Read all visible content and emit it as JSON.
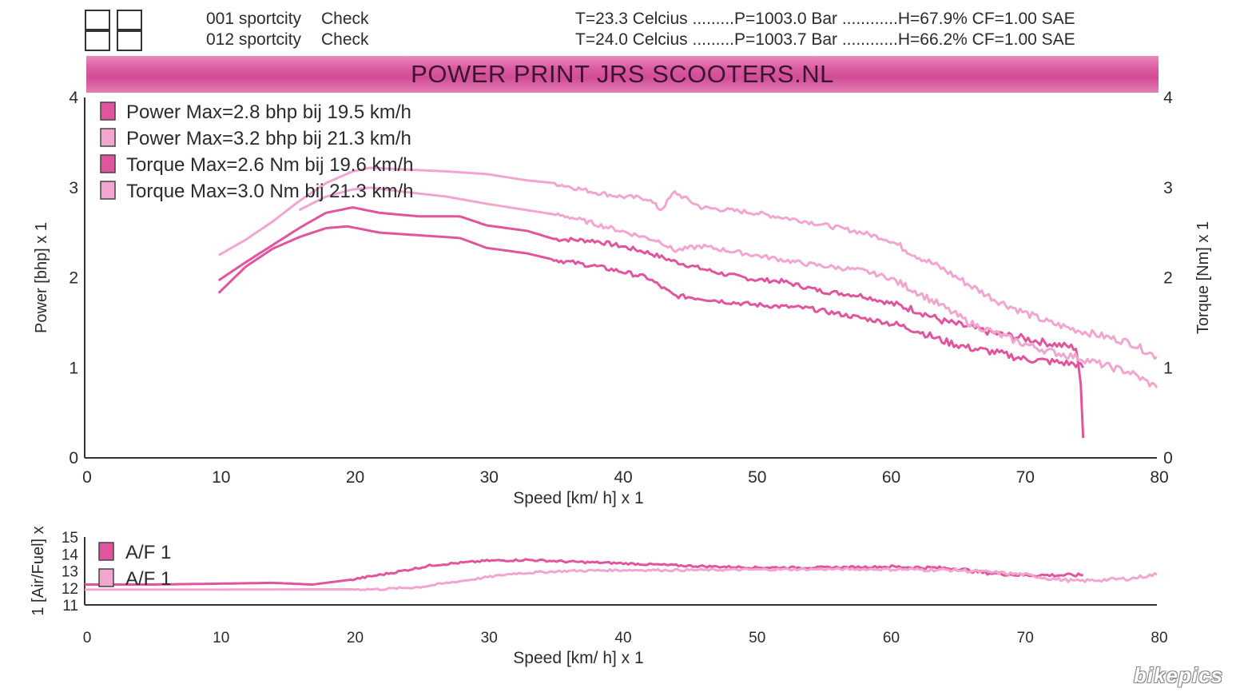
{
  "header": {
    "runs": [
      {
        "name": "001 sportcity",
        "status": "Check",
        "conditions": "T=23.3 Celcius .........P=1003.0 Bar ............H=67.9% CF=1.00 SAE"
      },
      {
        "name": "012 sportcity",
        "status": "Check",
        "conditions": "T=24.0 Celcius .........P=1003.7 Bar ............H=66.2% CF=1.00 SAE"
      }
    ],
    "banner": "POWER PRINT JRS SCOOTERS.NL"
  },
  "colors": {
    "run1": "#e0559d",
    "run2": "#f1a6cf",
    "axis": "#333333",
    "banner": "#d24d97"
  },
  "chart_data": [
    {
      "type": "line",
      "xlabel": "Speed [km/ h] x 1",
      "ylabel": "Power [bhp] x 1",
      "y2label": "Torque [Nm] x 1",
      "xlim": [
        0,
        80
      ],
      "ylim": [
        0,
        4
      ],
      "y2lim": [
        0,
        4
      ],
      "xticks": [
        "0",
        "10",
        "20",
        "30",
        "40",
        "50",
        "60",
        "70",
        "80"
      ],
      "yticks": [
        "0",
        "1",
        "2",
        "3",
        "4"
      ],
      "y2ticks": [
        "0",
        "1",
        "2",
        "3",
        "4"
      ],
      "legend_position": "top-left",
      "legend": [
        "Power  Max=2.8 bhp bij 19.5 km/h",
        "Power  Max=3.2 bhp bij 21.3 km/h",
        "Torque  Max=2.6 Nm bij 19.6 km/h",
        "Torque  Max=3.0 Nm bij 21.3 km/h"
      ],
      "series": [
        {
          "color": "#e0559d",
          "x": [
            10,
            12,
            14,
            16,
            18,
            20,
            22,
            25,
            28,
            30,
            33,
            35,
            38,
            40,
            42,
            44,
            46,
            48,
            50,
            52,
            55,
            58,
            60,
            62,
            64,
            66,
            68,
            70,
            72,
            74,
            74.3,
            74.5
          ],
          "y": [
            1.97,
            2.17,
            2.36,
            2.55,
            2.72,
            2.78,
            2.72,
            2.68,
            2.68,
            2.58,
            2.52,
            2.43,
            2.41,
            2.35,
            2.28,
            2.18,
            2.1,
            2.03,
            1.98,
            1.96,
            1.85,
            1.8,
            1.72,
            1.64,
            1.52,
            1.45,
            1.38,
            1.33,
            1.27,
            1.22,
            0.85,
            0.22
          ]
        },
        {
          "color": "#f1a6cf",
          "x": [
            10,
            12,
            14,
            16,
            18,
            20,
            21.3,
            24,
            27,
            30,
            33,
            35,
            38,
            40,
            42,
            43,
            44,
            46,
            50,
            54,
            58,
            60,
            62,
            64,
            66,
            68,
            70,
            72,
            74,
            76,
            78,
            80
          ],
          "y": [
            2.25,
            2.42,
            2.62,
            2.85,
            3.05,
            3.18,
            3.22,
            3.2,
            3.18,
            3.15,
            3.08,
            3.05,
            2.95,
            2.9,
            2.88,
            2.75,
            2.95,
            2.78,
            2.72,
            2.62,
            2.5,
            2.42,
            2.25,
            2.1,
            1.92,
            1.75,
            1.62,
            1.5,
            1.42,
            1.35,
            1.28,
            1.12
          ]
        },
        {
          "color": "#e0559d",
          "x": [
            10,
            12,
            14,
            16,
            18,
            19.6,
            22,
            25,
            28,
            30,
            33,
            35,
            38,
            40,
            42,
            44,
            46,
            48,
            50,
            54,
            58,
            60,
            62,
            64,
            66,
            68,
            70,
            72,
            74,
            74.5
          ],
          "y": [
            1.83,
            2.12,
            2.32,
            2.45,
            2.55,
            2.57,
            2.5,
            2.47,
            2.44,
            2.33,
            2.27,
            2.2,
            2.13,
            2.07,
            2.0,
            1.8,
            1.77,
            1.73,
            1.7,
            1.66,
            1.55,
            1.5,
            1.42,
            1.3,
            1.22,
            1.17,
            1.1,
            1.07,
            1.04,
            1.0
          ]
        },
        {
          "color": "#f1a6cf",
          "x": [
            16,
            18,
            20,
            21.3,
            24,
            27,
            30,
            33,
            36,
            40,
            43,
            44,
            46,
            50,
            54,
            58,
            60,
            62,
            64,
            66,
            68,
            70,
            72,
            74,
            76,
            78,
            80
          ],
          "y": [
            2.75,
            2.9,
            2.98,
            3.0,
            2.95,
            2.9,
            2.82,
            2.75,
            2.68,
            2.52,
            2.4,
            2.3,
            2.35,
            2.25,
            2.15,
            2.08,
            2.0,
            1.85,
            1.68,
            1.5,
            1.38,
            1.27,
            1.18,
            1.12,
            1.03,
            0.95,
            0.78
          ]
        }
      ]
    },
    {
      "type": "line",
      "xlabel": "Speed [km/ h] x 1",
      "ylabel": "1 [Air/Fuel] x",
      "xlim": [
        0,
        80
      ],
      "ylim": [
        11,
        15
      ],
      "xticks": [
        "0",
        "10",
        "20",
        "30",
        "40",
        "50",
        "60",
        "70",
        "80"
      ],
      "yticks": [
        "11",
        "12",
        "13",
        "14",
        "15"
      ],
      "legend_position": "top-left",
      "legend": [
        "A/F 1",
        "A/F 1"
      ],
      "series": [
        {
          "color": "#e0559d",
          "x": [
            0,
            5,
            10,
            14,
            17,
            20,
            23,
            26,
            30,
            33,
            36,
            40,
            45,
            50,
            55,
            60,
            65,
            67,
            70,
            74.5
          ],
          "y": [
            12.2,
            12.2,
            12.25,
            12.3,
            12.2,
            12.5,
            12.9,
            13.35,
            13.6,
            13.65,
            13.55,
            13.45,
            13.3,
            13.2,
            13.2,
            13.25,
            13.15,
            12.9,
            12.75,
            12.75
          ]
        },
        {
          "color": "#f1a6cf",
          "x": [
            0,
            10,
            18,
            22,
            25,
            28,
            32,
            36,
            40,
            45,
            50,
            55,
            60,
            65,
            70,
            72,
            74,
            78,
            80
          ],
          "y": [
            11.9,
            11.9,
            11.92,
            11.92,
            12.05,
            12.4,
            12.85,
            13.0,
            13.05,
            13.05,
            13.08,
            13.1,
            13.1,
            13.05,
            12.8,
            12.55,
            12.4,
            12.55,
            12.8
          ]
        }
      ]
    }
  ],
  "watermark": "bikepics"
}
